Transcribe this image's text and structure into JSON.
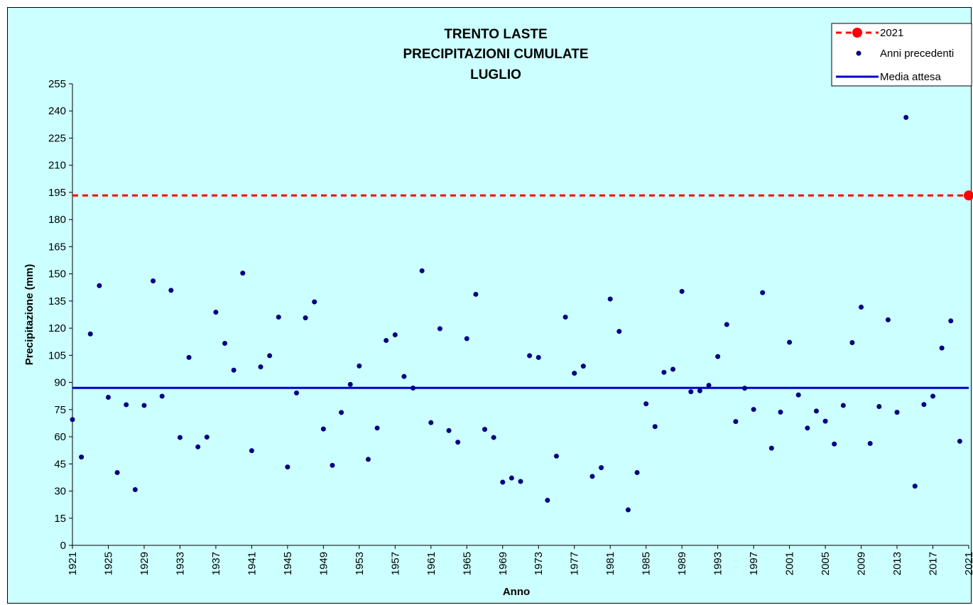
{
  "chart_data": {
    "type": "scatter",
    "title_lines": [
      "TRENTO LASTE",
      "PRECIPITAZIONI CUMULATE",
      "LUGLIO"
    ],
    "xlabel": "Anno",
    "ylabel": "Precipitazione (mm)",
    "ylim": [
      0,
      255
    ],
    "y_ticks": [
      0,
      15,
      30,
      45,
      60,
      75,
      90,
      105,
      120,
      135,
      150,
      165,
      180,
      195,
      210,
      225,
      240,
      255
    ],
    "xlim": [
      1921,
      2021
    ],
    "x_ticks": [
      1921,
      1925,
      1929,
      1933,
      1937,
      1941,
      1945,
      1949,
      1953,
      1957,
      1961,
      1965,
      1969,
      1973,
      1977,
      1981,
      1985,
      1989,
      1993,
      1997,
      2001,
      2005,
      2009,
      2013,
      2017,
      2021
    ],
    "grid": false,
    "legend_position": "top-right",
    "legend": [
      "2021",
      "Anni precedenti",
      "Media attesa"
    ],
    "series": [
      {
        "name": "Anni precedenti",
        "color": "#000080",
        "x": [
          1921,
          1922,
          1923,
          1924,
          1925,
          1926,
          1927,
          1928,
          1929,
          1930,
          1931,
          1932,
          1933,
          1934,
          1935,
          1936,
          1937,
          1938,
          1939,
          1940,
          1941,
          1942,
          1943,
          1944,
          1945,
          1946,
          1947,
          1948,
          1949,
          1950,
          1951,
          1952,
          1953,
          1954,
          1955,
          1956,
          1957,
          1958,
          1959,
          1960,
          1961,
          1962,
          1963,
          1964,
          1965,
          1966,
          1967,
          1968,
          1969,
          1970,
          1971,
          1972,
          1973,
          1974,
          1975,
          1976,
          1977,
          1978,
          1979,
          1980,
          1981,
          1982,
          1983,
          1984,
          1985,
          1986,
          1987,
          1988,
          1989,
          1990,
          1991,
          1992,
          1993,
          1994,
          1995,
          1996,
          1997,
          1998,
          1999,
          2000,
          2001,
          2002,
          2003,
          2004,
          2005,
          2006,
          2007,
          2008,
          2009,
          2010,
          2011,
          2012,
          2013,
          2014,
          2015,
          2016,
          2017,
          2018,
          2019,
          2020
        ],
        "y": [
          69.5,
          48.8,
          116.8,
          143.5,
          81.8,
          40.2,
          77.7,
          30.8,
          77.3,
          146.1,
          82.4,
          140.9,
          59.6,
          103.8,
          54.4,
          59.8,
          128.8,
          111.6,
          96.8,
          150.4,
          52.3,
          98.6,
          104.8,
          126.1,
          43.3,
          84.2,
          125.7,
          134.5,
          64.3,
          44.2,
          73.4,
          88.9,
          99.1,
          47.5,
          64.8,
          113.2,
          116.3,
          93.3,
          86.9,
          151.7,
          67.8,
          119.7,
          63.4,
          57.0,
          114.2,
          138.7,
          64.1,
          59.6,
          34.9,
          37.2,
          35.3,
          104.8,
          103.8,
          24.9,
          49.3,
          126.1,
          95.1,
          99.0,
          38.1,
          42.9,
          136.1,
          118.2,
          19.6,
          40.2,
          78.2,
          65.6,
          95.6,
          97.3,
          140.3,
          84.9,
          85.4,
          88.4,
          104.3,
          122.0,
          68.4,
          86.8,
          75.1,
          139.6,
          53.7,
          73.6,
          112.2,
          83.1,
          64.8,
          74.2,
          68.6,
          56.0,
          77.3,
          112.0,
          131.6,
          56.3,
          76.7,
          124.6,
          73.5,
          236.4,
          32.7,
          77.8,
          82.4,
          109.0,
          124.0,
          57.5
        ]
      },
      {
        "name": "2021",
        "color": "#ff0000",
        "x": [
          2021
        ],
        "y": [
          193.3
        ]
      },
      {
        "name": "Media attesa",
        "color": "#0000cc",
        "value": 87.0
      }
    ]
  }
}
